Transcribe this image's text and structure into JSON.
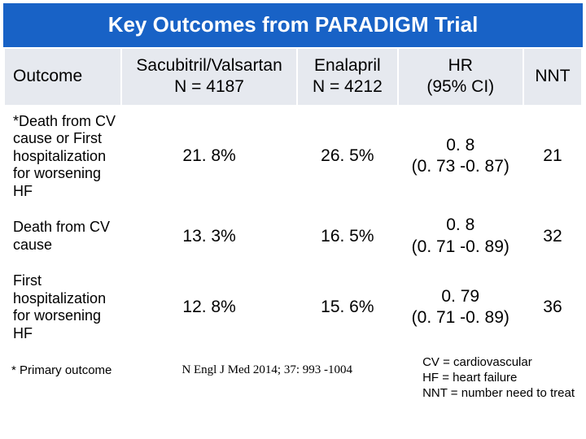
{
  "title": "Key Outcomes from PARADIGM Trial",
  "colors": {
    "title_bg": "#1862c6",
    "title_fg": "#ffffff",
    "header_bg": "#e6e9ef",
    "cell_border": "#ffffff",
    "text": "#000000"
  },
  "table": {
    "headers": {
      "outcome": "Outcome",
      "drug1_line1": "Sacubitril/Valsartan",
      "drug1_line2": "N = 4187",
      "drug2_line1": "Enalapril",
      "drug2_line2": "N = 4212",
      "hr_line1": "HR",
      "hr_line2": "(95% CI)",
      "nnt": "NNT"
    },
    "rows": [
      {
        "label": "*Death from CV cause or First hospitalization for worsening HF",
        "drug1": "21. 8%",
        "drug2": "26. 5%",
        "hr_line1": "0. 8",
        "hr_line2": "(0. 73 -0. 87)",
        "nnt": "21"
      },
      {
        "label": "Death from CV cause",
        "drug1": "13. 3%",
        "drug2": "16. 5%",
        "hr_line1": "0. 8",
        "hr_line2": "(0. 71 -0. 89)",
        "nnt": "32"
      },
      {
        "label": "First hospitalization for worsening HF",
        "drug1": "12. 8%",
        "drug2": "15. 6%",
        "hr_line1": "0. 79",
        "hr_line2": "(0. 71 -0. 89)",
        "nnt": "36"
      }
    ]
  },
  "footer": {
    "left": "* Primary outcome",
    "center": "N Engl J Med 2014; 37: 993 -1004",
    "right_line1": "CV = cardiovascular",
    "right_line2": "HF = heart failure",
    "right_line3": "NNT = number need to treat"
  }
}
